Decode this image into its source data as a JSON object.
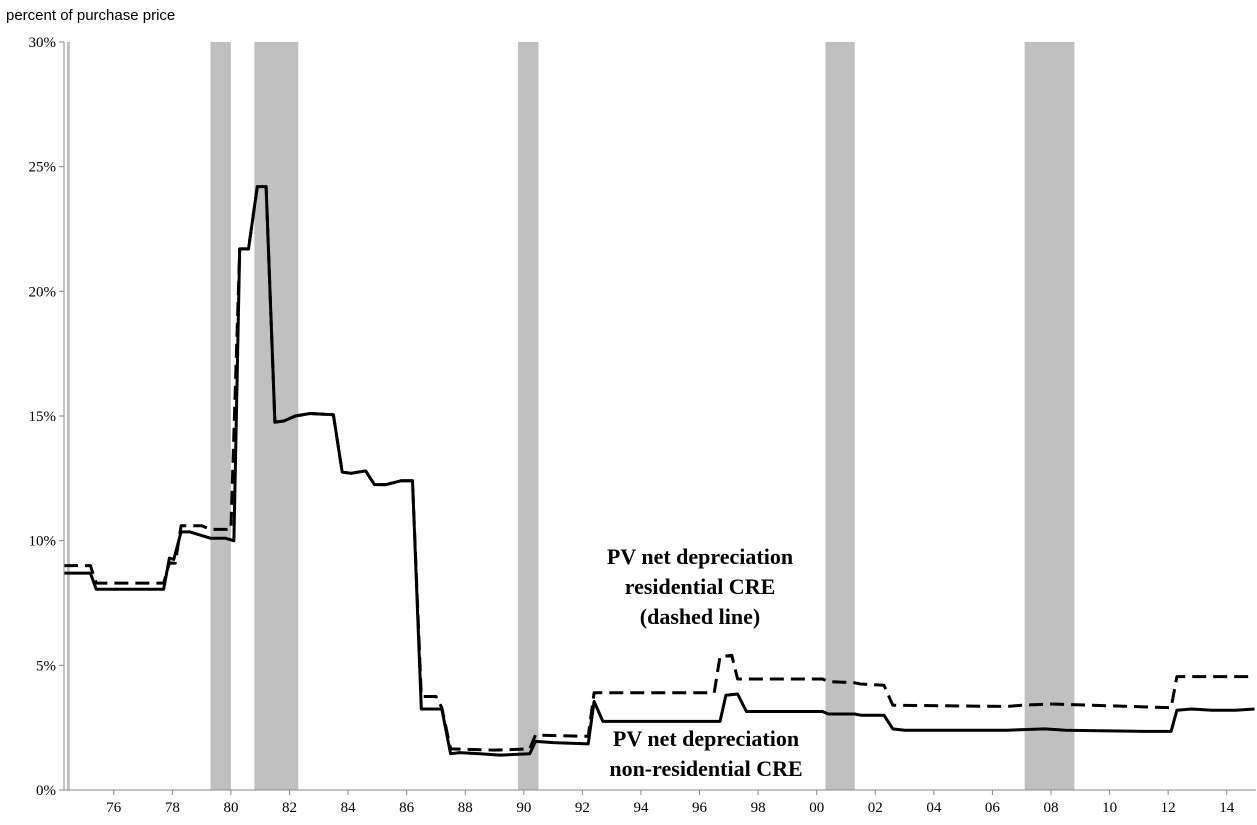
{
  "chart_data": {
    "type": "line",
    "unit_label": "percent of purchase price",
    "xlim": [
      1974.3,
      2015.0
    ],
    "ylim": [
      0,
      30
    ],
    "y_ticks": [
      {
        "value": 0,
        "label": "0%"
      },
      {
        "value": 5,
        "label": "5%"
      },
      {
        "value": 10,
        "label": "10%"
      },
      {
        "value": 15,
        "label": "15%"
      },
      {
        "value": 20,
        "label": "20%"
      },
      {
        "value": 25,
        "label": "25%"
      },
      {
        "value": 30,
        "label": "30%"
      }
    ],
    "x_ticks": [
      {
        "value": 1976,
        "label": "76"
      },
      {
        "value": 1978,
        "label": "78"
      },
      {
        "value": 1980,
        "label": "80"
      },
      {
        "value": 1982,
        "label": "82"
      },
      {
        "value": 1984,
        "label": "84"
      },
      {
        "value": 1986,
        "label": "86"
      },
      {
        "value": 1988,
        "label": "88"
      },
      {
        "value": 1990,
        "label": "90"
      },
      {
        "value": 1992,
        "label": "92"
      },
      {
        "value": 1994,
        "label": "94"
      },
      {
        "value": 1996,
        "label": "96"
      },
      {
        "value": 1998,
        "label": "98"
      },
      {
        "value": 2000,
        "label": "00"
      },
      {
        "value": 2002,
        "label": "02"
      },
      {
        "value": 2004,
        "label": "04"
      },
      {
        "value": 2006,
        "label": "06"
      },
      {
        "value": 2008,
        "label": "08"
      },
      {
        "value": 2010,
        "label": "10"
      },
      {
        "value": 2012,
        "label": "12"
      },
      {
        "value": 2014,
        "label": "14"
      }
    ],
    "recession_bands": [
      [
        1974.4,
        1974.5
      ],
      [
        1979.3,
        1980.0
      ],
      [
        1980.8,
        1982.3
      ],
      [
        1989.8,
        1990.5
      ],
      [
        2000.3,
        2001.3
      ],
      [
        2007.1,
        2008.8
      ]
    ],
    "series": [
      {
        "style": "solid",
        "points": [
          [
            1974.3,
            8.7
          ],
          [
            1975.2,
            8.7
          ],
          [
            1975.4,
            8.05
          ],
          [
            1977.7,
            8.05
          ],
          [
            1977.9,
            9.3
          ],
          [
            1978.05,
            9.25
          ],
          [
            1978.3,
            10.35
          ],
          [
            1978.6,
            10.35
          ],
          [
            1979.3,
            10.1
          ],
          [
            1979.8,
            10.1
          ],
          [
            1980.1,
            10.0
          ],
          [
            1980.3,
            21.7
          ],
          [
            1980.6,
            21.7
          ],
          [
            1980.9,
            24.2
          ],
          [
            1981.2,
            24.2
          ],
          [
            1981.5,
            14.75
          ],
          [
            1981.8,
            14.8
          ],
          [
            1982.2,
            15.0
          ],
          [
            1982.7,
            15.1
          ],
          [
            1983.5,
            15.05
          ],
          [
            1983.8,
            12.75
          ],
          [
            1984.1,
            12.7
          ],
          [
            1984.6,
            12.8
          ],
          [
            1984.9,
            12.25
          ],
          [
            1985.3,
            12.25
          ],
          [
            1985.8,
            12.4
          ],
          [
            1986.2,
            12.4
          ],
          [
            1986.5,
            3.25
          ],
          [
            1987.2,
            3.25
          ],
          [
            1987.5,
            1.45
          ],
          [
            1987.8,
            1.5
          ],
          [
            1988.5,
            1.45
          ],
          [
            1989.2,
            1.4
          ],
          [
            1990.2,
            1.45
          ],
          [
            1990.4,
            1.95
          ],
          [
            1991.0,
            1.9
          ],
          [
            1992.2,
            1.85
          ],
          [
            1992.4,
            3.55
          ],
          [
            1992.7,
            2.75
          ],
          [
            1993.5,
            2.75
          ],
          [
            1996.7,
            2.75
          ],
          [
            1996.9,
            3.8
          ],
          [
            1997.3,
            3.85
          ],
          [
            1997.6,
            3.15
          ],
          [
            1998.5,
            3.15
          ],
          [
            2000.2,
            3.15
          ],
          [
            2000.4,
            3.05
          ],
          [
            2001.3,
            3.05
          ],
          [
            2001.5,
            3.0
          ],
          [
            2002.3,
            3.0
          ],
          [
            2002.6,
            2.45
          ],
          [
            2003.0,
            2.4
          ],
          [
            2006.5,
            2.4
          ],
          [
            2007.8,
            2.45
          ],
          [
            2008.5,
            2.4
          ],
          [
            2011.2,
            2.35
          ],
          [
            2012.1,
            2.35
          ],
          [
            2012.3,
            3.2
          ],
          [
            2012.8,
            3.25
          ],
          [
            2013.5,
            3.2
          ],
          [
            2014.3,
            3.2
          ],
          [
            2014.95,
            3.25
          ]
        ]
      },
      {
        "style": "dashed",
        "points": [
          [
            1974.3,
            9.0
          ],
          [
            1975.2,
            9.0
          ],
          [
            1975.4,
            8.3
          ],
          [
            1977.7,
            8.3
          ],
          [
            1977.9,
            9.1
          ],
          [
            1978.1,
            9.1
          ],
          [
            1978.3,
            10.6
          ],
          [
            1979.0,
            10.6
          ],
          [
            1979.3,
            10.45
          ],
          [
            1980.0,
            10.45
          ],
          [
            1980.3,
            21.7
          ],
          [
            1980.6,
            21.7
          ],
          [
            1980.9,
            24.2
          ],
          [
            1981.2,
            24.2
          ],
          [
            1981.5,
            14.75
          ],
          [
            1981.8,
            14.8
          ],
          [
            1982.2,
            15.0
          ],
          [
            1982.7,
            15.1
          ],
          [
            1983.5,
            15.05
          ],
          [
            1983.8,
            12.75
          ],
          [
            1984.1,
            12.7
          ],
          [
            1984.6,
            12.8
          ],
          [
            1984.9,
            12.25
          ],
          [
            1985.3,
            12.25
          ],
          [
            1985.8,
            12.4
          ],
          [
            1986.2,
            12.4
          ],
          [
            1986.5,
            3.75
          ],
          [
            1987.0,
            3.75
          ],
          [
            1987.2,
            3.3
          ],
          [
            1987.5,
            1.65
          ],
          [
            1989.0,
            1.6
          ],
          [
            1990.2,
            1.65
          ],
          [
            1990.4,
            2.2
          ],
          [
            1992.2,
            2.15
          ],
          [
            1992.4,
            3.9
          ],
          [
            1996.5,
            3.9
          ],
          [
            1996.7,
            5.35
          ],
          [
            1997.1,
            5.4
          ],
          [
            1997.3,
            4.45
          ],
          [
            2000.2,
            4.45
          ],
          [
            2000.4,
            4.35
          ],
          [
            2001.3,
            4.3
          ],
          [
            2001.5,
            4.25
          ],
          [
            2002.3,
            4.2
          ],
          [
            2002.6,
            3.4
          ],
          [
            2006.5,
            3.35
          ],
          [
            2007.0,
            3.4
          ],
          [
            2008.0,
            3.45
          ],
          [
            2012.1,
            3.3
          ],
          [
            2012.3,
            4.55
          ],
          [
            2014.95,
            4.55
          ]
        ]
      }
    ],
    "annotations": [
      {
        "anchor": "upper",
        "lines": [
          "PV net depreciation",
          "residential CRE",
          "(dashed line)"
        ]
      },
      {
        "anchor": "lower",
        "lines": [
          "PV net depreciation",
          "non-residential CRE"
        ]
      }
    ]
  }
}
